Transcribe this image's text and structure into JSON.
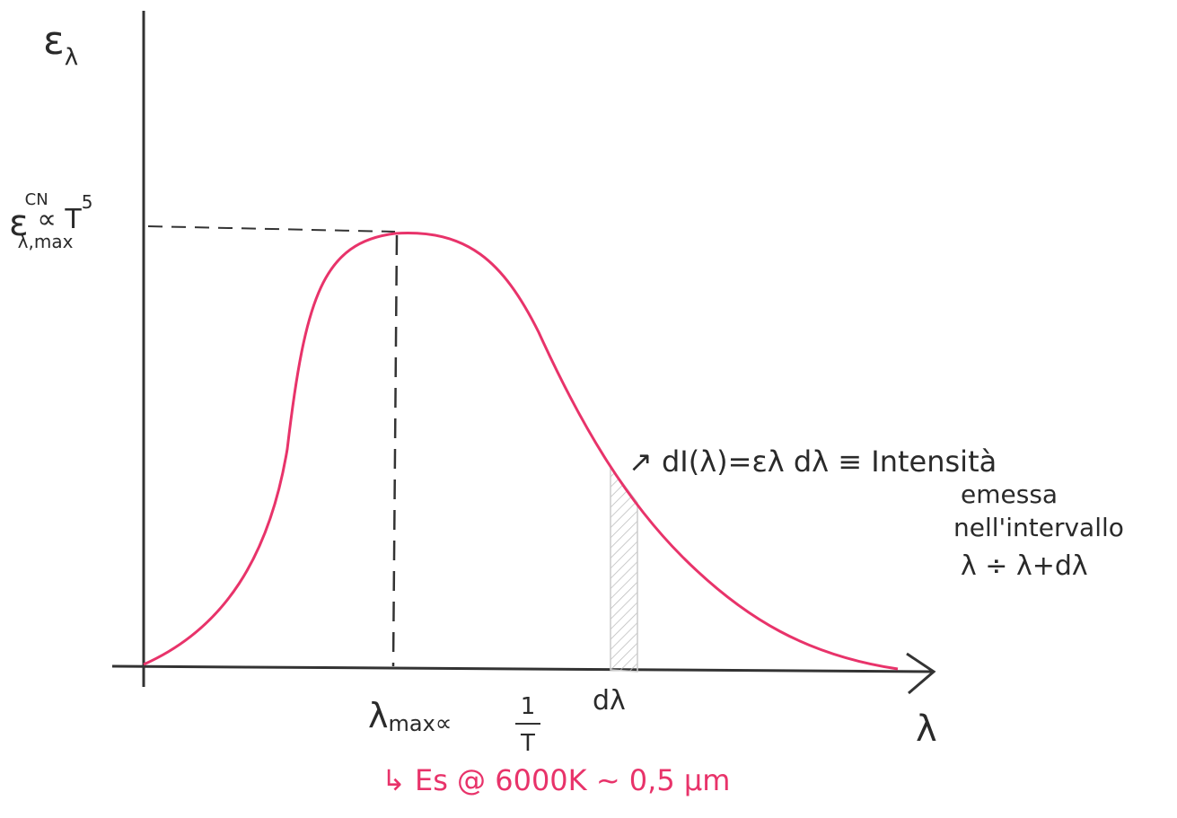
{
  "axes": {
    "y_label": {
      "base": "ε",
      "sub": "λ"
    },
    "x_label": "λ"
  },
  "peak_value_label": {
    "base": "ε",
    "sup": "CN",
    "sub": "λ,max",
    "relation": "∝ T",
    "exponent": "5"
  },
  "peak_wavelength_label": {
    "base": "λ",
    "sub": "max",
    "relation": "∝",
    "numerator": "1",
    "denominator": "T"
  },
  "interval_label": "dλ",
  "interval_note": {
    "formula": "↗ dI(λ)=ελ dλ ≡ Intensità",
    "lines": [
      "emessa",
      "nell'intervallo",
      "λ ÷ λ+dλ"
    ]
  },
  "example_note": "↳ Es @ 6000K ~ 0,5 μm"
}
